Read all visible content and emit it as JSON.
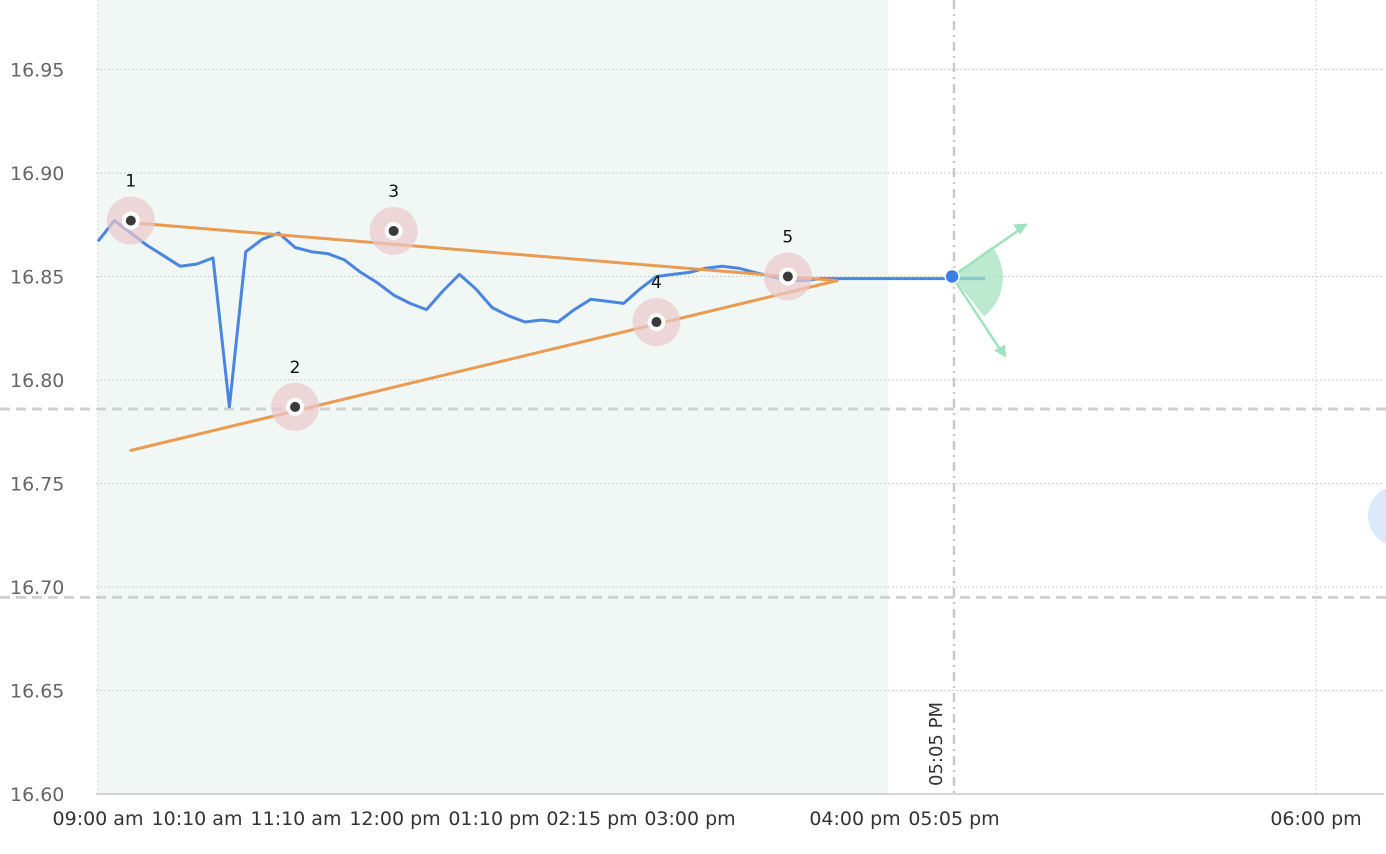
{
  "chart_data": {
    "type": "line",
    "y_ticks": [
      "16.60",
      "16.65",
      "16.70",
      "16.75",
      "16.80",
      "16.85",
      "16.90",
      "16.95"
    ],
    "ylim": [
      16.6,
      16.96
    ],
    "x_tick_labels": [
      "09:00 am",
      "10:10 am",
      "11:10 am",
      "12:00 pm",
      "01:10 pm",
      "02:15 pm",
      "03:00 pm",
      "04:00 pm",
      "05:05 pm",
      "06:00 pm"
    ],
    "grid": true,
    "series": [
      {
        "color": "#4a86e0",
        "x": [
          0,
          0.5,
          1,
          1.5,
          2,
          2.5,
          3,
          3.5,
          4,
          4.5,
          5,
          5.5,
          6,
          6.5,
          7,
          7.5,
          8,
          8.5,
          9,
          9.5,
          10,
          10.5,
          11,
          11.5,
          12,
          12.5,
          13,
          13.5,
          14,
          14.5,
          15,
          15.5,
          16,
          16.5,
          17,
          17.5,
          18,
          18.5,
          19,
          19.5,
          20,
          20.5,
          21,
          21.5,
          22,
          22.5,
          23,
          23.5,
          24,
          24.5,
          25,
          25.5,
          26,
          26.5,
          27
        ],
        "values": [
          16.867,
          16.877,
          16.871,
          16.865,
          16.86,
          16.855,
          16.856,
          16.859,
          16.787,
          16.862,
          16.868,
          16.871,
          16.864,
          16.862,
          16.861,
          16.858,
          16.852,
          16.847,
          16.841,
          16.837,
          16.834,
          16.843,
          16.851,
          16.844,
          16.835,
          16.831,
          16.828,
          16.829,
          16.828,
          16.834,
          16.839,
          16.838,
          16.837,
          16.844,
          16.85,
          16.851,
          16.852,
          16.854,
          16.855,
          16.854,
          16.852,
          16.85,
          16.848,
          16.848,
          16.849,
          16.849,
          16.849,
          16.849,
          16.849,
          16.849,
          16.849,
          16.849,
          16.849,
          16.849,
          16.849
        ]
      }
    ],
    "trend_lines": [
      {
        "color": "#e99b52",
        "from": [
          1,
          16.876
        ],
        "to": [
          22.5,
          16.848
        ]
      },
      {
        "color": "#e99b52",
        "from": [
          1,
          16.766
        ],
        "to": [
          22.5,
          16.848
        ]
      }
    ],
    "markers": [
      {
        "label": "1",
        "x": 1,
        "y": 16.877
      },
      {
        "label": "2",
        "x": 6,
        "y": 16.787
      },
      {
        "label": "3",
        "x": 9,
        "y": 16.872
      },
      {
        "label": "4",
        "x": 17,
        "y": 16.828
      },
      {
        "label": "5",
        "x": 21,
        "y": 16.85
      }
    ],
    "current_point": {
      "x": 26,
      "y": 16.85,
      "color": "#3c7ee6"
    },
    "dashed_reference_lines": [
      16.786,
      16.695
    ],
    "session_band_color": "#eef6f3",
    "direction_cone_color": "#9fe1bd",
    "vertical_time_label": "05:05 PM"
  }
}
